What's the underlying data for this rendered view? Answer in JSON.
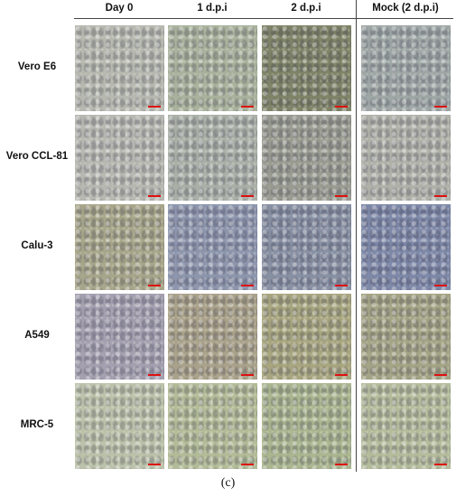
{
  "columns": [
    "Day 0",
    "1 d.p.i",
    "2 d.p.i",
    "Mock (2 d.p.i)"
  ],
  "rows": [
    "Vero E6",
    "Vero CCL-81",
    "Calu-3",
    "A549",
    "MRC-5"
  ],
  "caption": "(c)"
}
